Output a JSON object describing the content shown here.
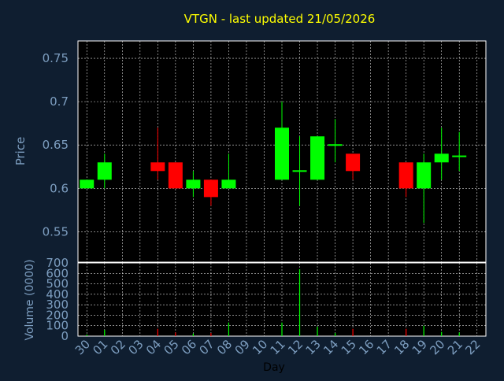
{
  "title": "VTGN - last updated 21/05/2026",
  "colors": {
    "background": "#0f1e30",
    "plot_background": "#000000",
    "axis": "#ffffff",
    "grid": "#ffffff",
    "tick_text": "#7d9ec0",
    "title_text": "#ffff00",
    "xlabel_text": "#000000",
    "up": "#00ff00",
    "down": "#ff0000"
  },
  "chart_data": [
    {
      "type": "candlestick",
      "name": "price",
      "ylabel": "Price",
      "ylim": [
        0.515,
        0.77
      ],
      "yticks": [
        0.55,
        0.6,
        0.65,
        0.7,
        0.75
      ],
      "ytick_labels": [
        "0.55",
        "0.6",
        "0.65",
        "0.7",
        "0.75"
      ],
      "grid": true,
      "candles": [
        {
          "day": "30",
          "open": 0.6,
          "close": 0.61,
          "high": 0.61,
          "low": 0.6
        },
        {
          "day": "01",
          "open": 0.61,
          "close": 0.63,
          "high": 0.64,
          "low": 0.6
        },
        {
          "day": "04",
          "open": 0.63,
          "close": 0.62,
          "high": 0.67,
          "low": 0.61
        },
        {
          "day": "05",
          "open": 0.63,
          "close": 0.6,
          "high": 0.63,
          "low": 0.6
        },
        {
          "day": "06",
          "open": 0.6,
          "close": 0.61,
          "high": 0.62,
          "low": 0.59
        },
        {
          "day": "07",
          "open": 0.61,
          "close": 0.59,
          "high": 0.61,
          "low": 0.58
        },
        {
          "day": "08",
          "open": 0.6,
          "close": 0.61,
          "high": 0.64,
          "low": 0.6
        },
        {
          "day": "11",
          "open": 0.61,
          "close": 0.67,
          "high": 0.7,
          "low": 0.61
        },
        {
          "day": "12",
          "open": 0.62,
          "close": 0.62,
          "high": 0.66,
          "low": 0.58
        },
        {
          "day": "13",
          "open": 0.61,
          "close": 0.66,
          "high": 0.66,
          "low": 0.61
        },
        {
          "day": "14",
          "open": 0.65,
          "close": 0.65,
          "high": 0.68,
          "low": 0.63
        },
        {
          "day": "15",
          "open": 0.64,
          "close": 0.62,
          "high": 0.64,
          "low": 0.61
        },
        {
          "day": "18",
          "open": 0.63,
          "close": 0.6,
          "high": 0.63,
          "low": 0.59
        },
        {
          "day": "19",
          "open": 0.6,
          "close": 0.63,
          "high": 0.64,
          "low": 0.56
        },
        {
          "day": "20",
          "open": 0.63,
          "close": 0.64,
          "high": 0.67,
          "low": 0.61
        },
        {
          "day": "21",
          "open": 0.637,
          "close": 0.637,
          "high": 0.665,
          "low": 0.62
        }
      ]
    },
    {
      "type": "bar",
      "name": "volume",
      "ylabel": "Volume (0000)",
      "xlabel": "Day",
      "ylim": [
        0,
        700
      ],
      "yticks": [
        0,
        100,
        200,
        300,
        400,
        500,
        600,
        700
      ],
      "ytick_labels": [
        "0",
        "100",
        "200",
        "300",
        "400",
        "500",
        "600",
        "700"
      ],
      "grid": true,
      "categories": [
        "30",
        "01",
        "02",
        "03",
        "04",
        "05",
        "06",
        "07",
        "08",
        "09",
        "10",
        "11",
        "12",
        "13",
        "14",
        "15",
        "16",
        "17",
        "18",
        "19",
        "20",
        "21",
        "22"
      ],
      "bars": [
        {
          "day": "30",
          "value": 15,
          "direction": "up"
        },
        {
          "day": "01",
          "value": 60,
          "direction": "up"
        },
        {
          "day": "04",
          "value": 70,
          "direction": "down"
        },
        {
          "day": "05",
          "value": 35,
          "direction": "down"
        },
        {
          "day": "06",
          "value": 25,
          "direction": "up"
        },
        {
          "day": "07",
          "value": 30,
          "direction": "down"
        },
        {
          "day": "08",
          "value": 130,
          "direction": "up"
        },
        {
          "day": "11",
          "value": 130,
          "direction": "up"
        },
        {
          "day": "12",
          "value": 640,
          "direction": "up"
        },
        {
          "day": "13",
          "value": 90,
          "direction": "up"
        },
        {
          "day": "14",
          "value": 30,
          "direction": "up"
        },
        {
          "day": "15",
          "value": 70,
          "direction": "down"
        },
        {
          "day": "18",
          "value": 70,
          "direction": "down"
        },
        {
          "day": "19",
          "value": 100,
          "direction": "up"
        },
        {
          "day": "20",
          "value": 40,
          "direction": "up"
        },
        {
          "day": "21",
          "value": 35,
          "direction": "up"
        }
      ]
    }
  ]
}
